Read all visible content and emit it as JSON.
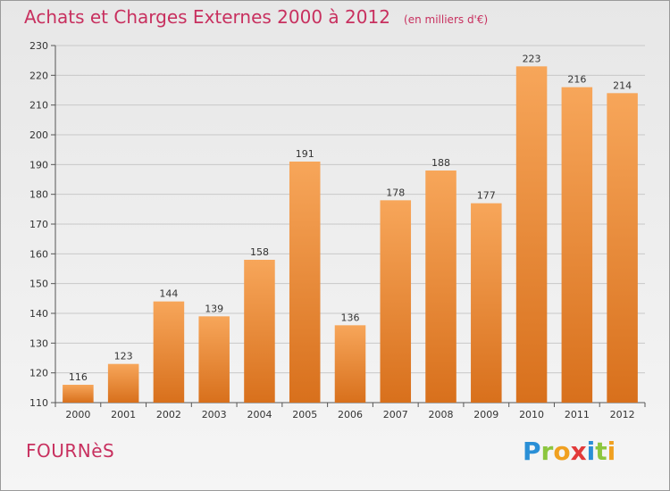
{
  "header": {
    "title": "Achats et Charges Externes 2000 à 2012",
    "unit": "(en milliers d'€)"
  },
  "footer": {
    "commune": "FOURNèS",
    "brand": "Proxiti",
    "brand_letters": [
      {
        "ch": "P",
        "color": "#2a8fd6"
      },
      {
        "ch": "r",
        "color": "#8cc63e"
      },
      {
        "ch": "o",
        "color": "#f0a020"
      },
      {
        "ch": "x",
        "color": "#e23a3a"
      },
      {
        "ch": "i",
        "color": "#2a8fd6"
      },
      {
        "ch": "t",
        "color": "#8cc63e"
      },
      {
        "ch": "i",
        "color": "#f0a020"
      }
    ]
  },
  "colors": {
    "bar_top": "#f7a65a",
    "bar_bottom": "#d8701c",
    "grid": "#c8c8c8",
    "title": "#c8305f"
  },
  "chart_data": {
    "type": "bar",
    "title": "Achats et Charges Externes 2000 à 2012",
    "subtitle": "(en milliers d'€)",
    "categories": [
      "2000",
      "2001",
      "2002",
      "2003",
      "2004",
      "2005",
      "2006",
      "2007",
      "2008",
      "2009",
      "2010",
      "2011",
      "2012"
    ],
    "values": [
      116,
      123,
      144,
      139,
      158,
      191,
      136,
      178,
      188,
      177,
      223,
      216,
      214
    ],
    "ylim": [
      110,
      230
    ],
    "yticks": [
      110,
      120,
      130,
      140,
      150,
      160,
      170,
      180,
      190,
      200,
      210,
      220,
      230
    ],
    "grid": true,
    "legend": "none"
  }
}
